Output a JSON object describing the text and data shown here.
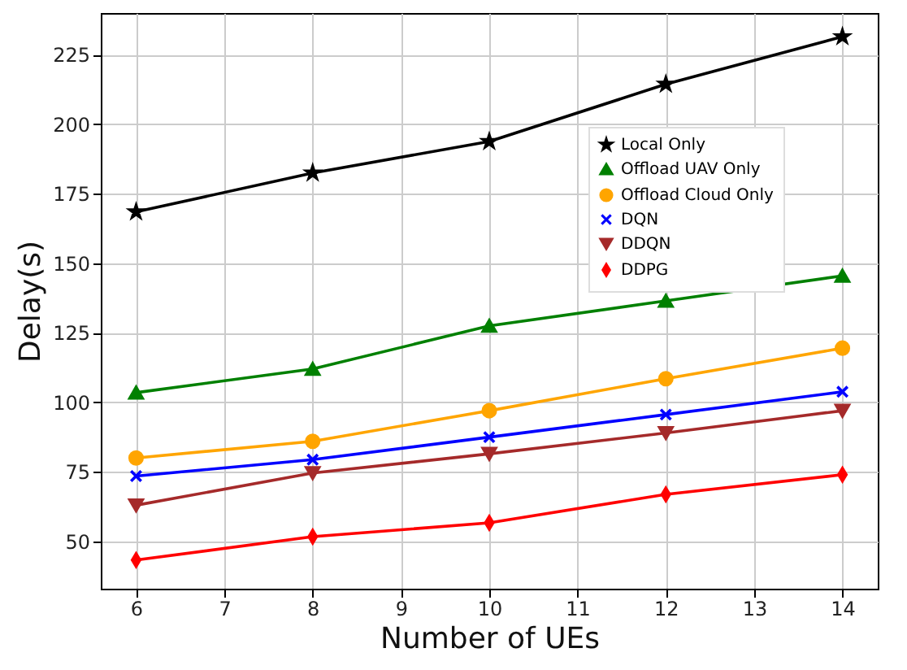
{
  "chart_data": {
    "type": "line",
    "xlabel": "Number of UEs",
    "ylabel": "Delay(s)",
    "x": [
      6,
      8,
      10,
      12,
      14
    ],
    "series": [
      {
        "name": "Local Only",
        "color": "#000000",
        "marker": "star",
        "values": [
          168.5,
          182.5,
          193.8,
          214.4,
          231.5
        ]
      },
      {
        "name": "Offload UAV Only",
        "color": "#008000",
        "marker": "triangle",
        "values": [
          103.5,
          112,
          127.5,
          136.5,
          145.5
        ]
      },
      {
        "name": "Offload Cloud Only",
        "color": "#ffa500",
        "marker": "circle",
        "values": [
          80,
          86,
          97,
          108.5,
          119.5
        ]
      },
      {
        "name": "DQN",
        "color": "#0000ff",
        "marker": "cross",
        "values": [
          73.5,
          79.4,
          87.5,
          95.6,
          103.8
        ]
      },
      {
        "name": "DDQN",
        "color": "#a52a2a",
        "marker": "triangle-down",
        "values": [
          63,
          74.6,
          81.5,
          89,
          97
        ]
      },
      {
        "name": "DDPG",
        "color": "#ff0000",
        "marker": "diamond",
        "values": [
          43.3,
          51.7,
          56.7,
          66.9,
          74
        ]
      }
    ],
    "xlim": [
      5.6,
      14.4
    ],
    "xticks": [
      6,
      7,
      8,
      9,
      10,
      11,
      12,
      13,
      14
    ],
    "ylim": [
      33,
      240
    ],
    "yticks": [
      50,
      75,
      100,
      125,
      150,
      175,
      200,
      225
    ],
    "grid": true,
    "legend": "top right",
    "line_style": "solid"
  }
}
